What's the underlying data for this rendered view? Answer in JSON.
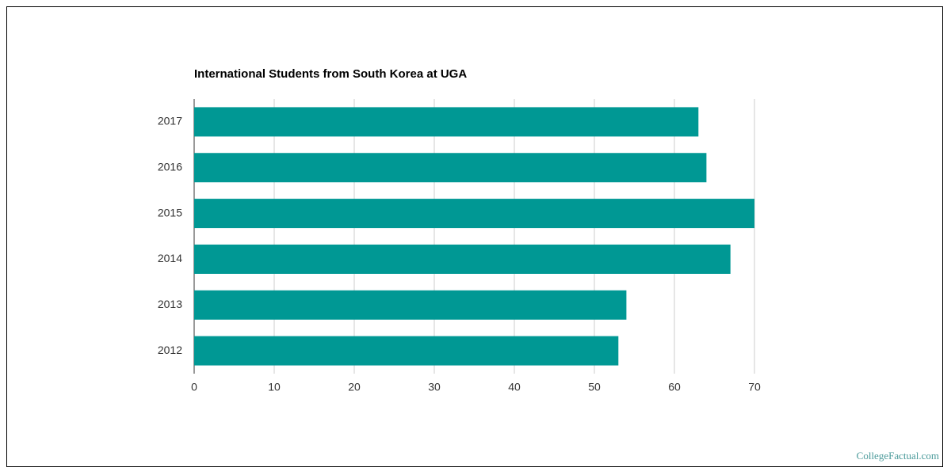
{
  "chart_data": {
    "type": "bar",
    "orientation": "horizontal",
    "title": "International Students from South Korea at UGA",
    "categories": [
      "2017",
      "2016",
      "2015",
      "2014",
      "2013",
      "2012"
    ],
    "values": [
      63,
      64,
      70,
      67,
      54,
      53
    ],
    "color": "#009894",
    "xlim": [
      0,
      70
    ],
    "xticks": [
      0,
      10,
      20,
      30,
      40,
      50,
      60,
      70
    ],
    "grid": true,
    "source": "CollegeFactual.com"
  }
}
